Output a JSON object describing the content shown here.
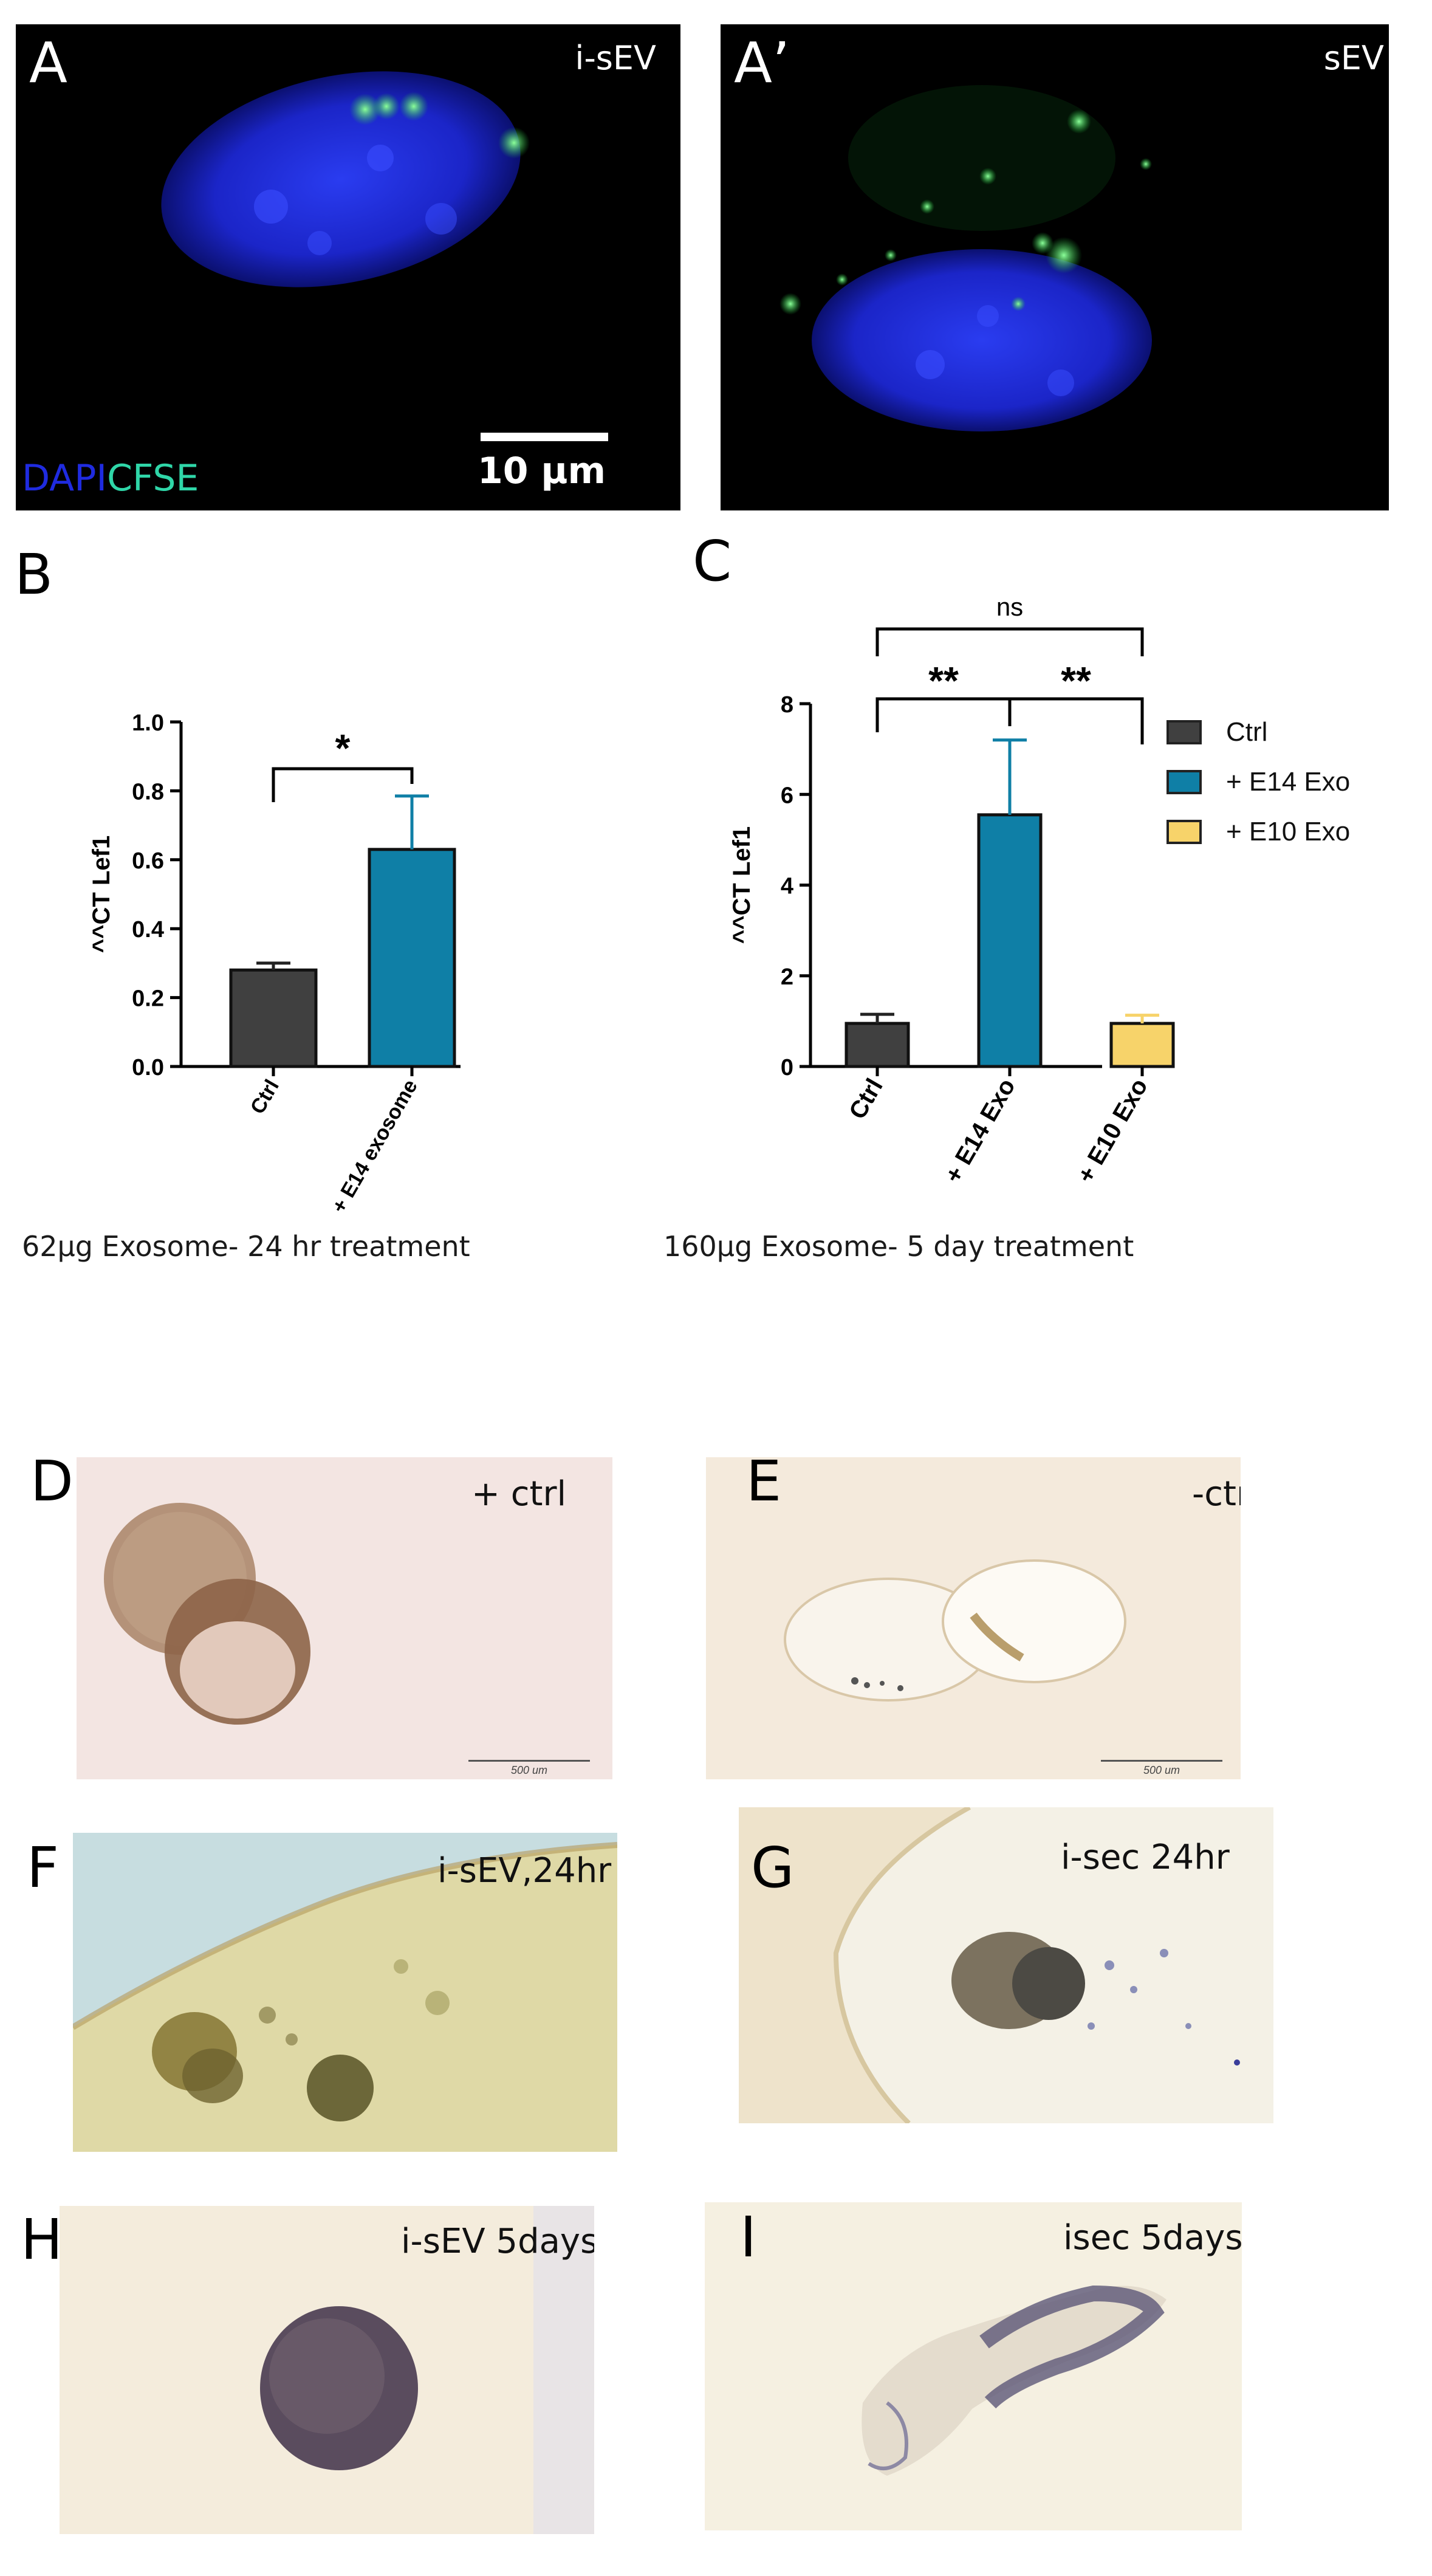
{
  "panels": {
    "A": {
      "letter": "A",
      "tag": "i-sEV",
      "stain_dapi": "DAPI",
      "stain_cfse": "CFSE",
      "scale_bar": "10 µm"
    },
    "A2": {
      "letter": "A’",
      "tag": "sEV"
    },
    "B": {
      "letter": "B",
      "caption": "62µg Exosome- 24 hr  treatment"
    },
    "C": {
      "letter": "C",
      "caption": "160µg Exosome- 5 day treatment"
    },
    "D": {
      "letter": "D",
      "tag": "+  ctrl",
      "scale_bar": "500 um"
    },
    "E": {
      "letter": "E",
      "tag": "-ctrl",
      "scale_bar": "500 um"
    },
    "F": {
      "letter": "F",
      "tag": "i-sEV,24hr"
    },
    "G": {
      "letter": "G",
      "tag": "i-sec 24hr"
    },
    "H": {
      "letter": "H",
      "tag": "i-sEV 5days"
    },
    "I": {
      "letter": "I",
      "tag": "isec 5days"
    }
  },
  "legend": {
    "items": [
      {
        "label": "Ctrl",
        "color": "#404040"
      },
      {
        "label": "+ E14 Exo",
        "color": "#0f7fa6"
      },
      {
        "label": "+ E10 Exo",
        "color": "#f7d36a"
      }
    ]
  },
  "chart_data": [
    {
      "type": "bar",
      "ylabel": "^^CT Lef1",
      "ylim": [
        0,
        1.0
      ],
      "yticks": [
        "0.0",
        "0.2",
        "0.4",
        "0.6",
        "0.8",
        "1.0"
      ],
      "categories": [
        "Ctrl",
        "+ E14  exosome"
      ],
      "values": [
        0.28,
        0.63
      ],
      "errors": [
        0.02,
        0.155
      ],
      "colors": [
        "#404040",
        "#0f7fa6"
      ],
      "significance": [
        {
          "from": 0,
          "to": 1,
          "label": "*"
        }
      ]
    },
    {
      "type": "bar",
      "ylabel": "^^CT Lef1",
      "ylim": [
        0,
        8
      ],
      "yticks": [
        "0",
        "2",
        "4",
        "6",
        "8"
      ],
      "categories": [
        "Ctrl",
        "+ E14 Exo",
        "+ E10 Exo"
      ],
      "values": [
        0.95,
        5.55,
        0.95
      ],
      "errors": [
        0.2,
        1.65,
        0.18
      ],
      "colors": [
        "#404040",
        "#0f7fa6",
        "#f7d36a"
      ],
      "significance": [
        {
          "from": 0,
          "to": 1,
          "label": "**"
        },
        {
          "from": 1,
          "to": 2,
          "label": "**"
        },
        {
          "from": 0,
          "to": 2,
          "label": "ns"
        }
      ]
    }
  ]
}
